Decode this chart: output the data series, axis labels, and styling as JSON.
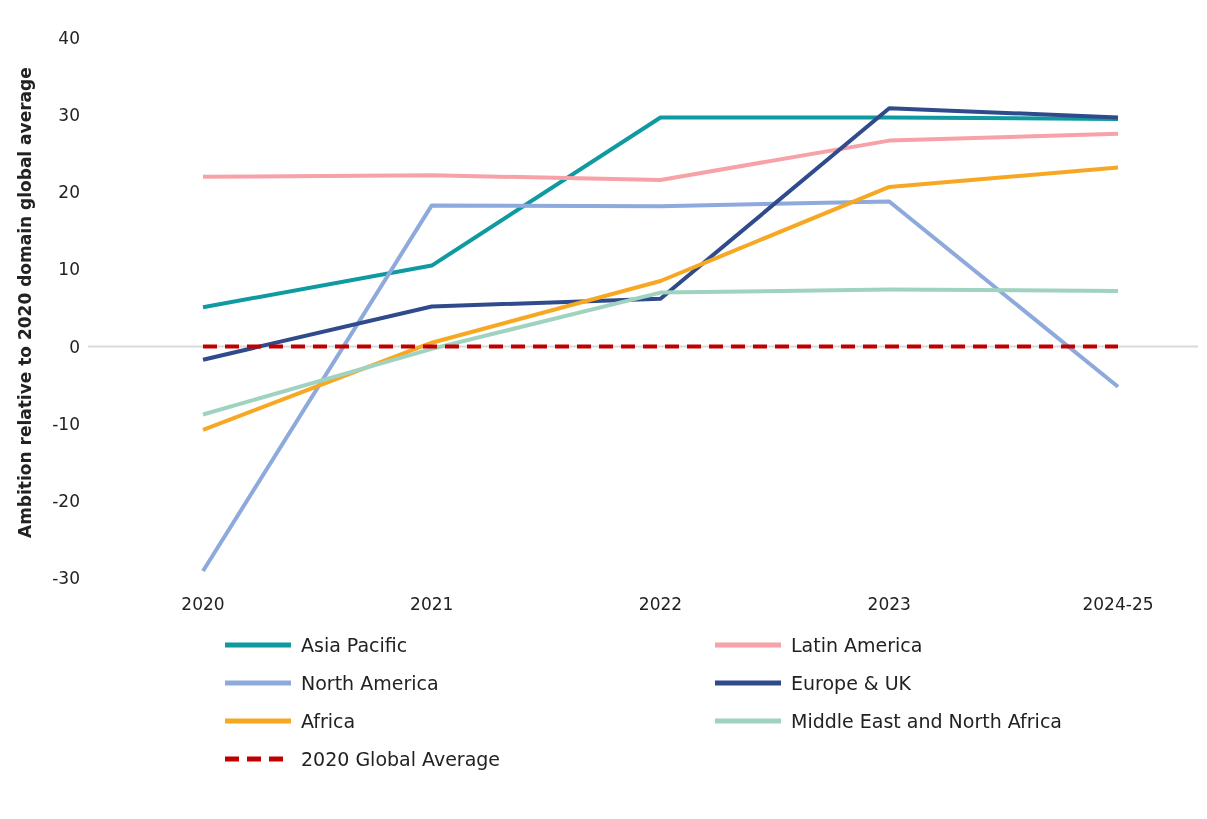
{
  "chart_data": {
    "type": "line",
    "ylabel": "Ambition relative to 2020 domain global average",
    "categories": [
      "2020",
      "2021",
      "2022",
      "2023",
      "2024-25"
    ],
    "ylim": [
      -30,
      40
    ],
    "yticks": [
      -30,
      -20,
      -10,
      0,
      10,
      20,
      30,
      40
    ],
    "grid": false,
    "legend": "bottom",
    "ref_lines": [
      {
        "axis": "y",
        "value": 0,
        "color": "#d9d9d9"
      }
    ],
    "series": [
      {
        "name": "Asia Pacific",
        "color": "#0e9aa0",
        "values": [
          5.1,
          10.5,
          29.7,
          29.7,
          29.5
        ]
      },
      {
        "name": "Latin America",
        "color": "#f7a1a8",
        "values": [
          22.0,
          22.2,
          21.6,
          26.7,
          27.6
        ]
      },
      {
        "name": "North America",
        "color": "#8ea9db",
        "values": [
          -29.1,
          18.3,
          18.2,
          18.8,
          -5.2
        ]
      },
      {
        "name": "Europe & UK",
        "color": "#2f4b8c",
        "values": [
          -1.7,
          5.2,
          6.2,
          30.9,
          29.7
        ]
      },
      {
        "name": "Africa",
        "color": "#f7a823",
        "values": [
          -10.8,
          0.5,
          8.5,
          20.7,
          23.2
        ]
      },
      {
        "name": "Middle East and North Africa",
        "color": "#9fd3c0",
        "values": [
          -8.8,
          -0.3,
          7.0,
          7.4,
          7.2
        ]
      },
      {
        "name": "2020 Global Average",
        "color": "#c00000",
        "line_style": "dashed",
        "values": [
          0,
          0,
          0,
          0,
          0
        ]
      }
    ]
  }
}
